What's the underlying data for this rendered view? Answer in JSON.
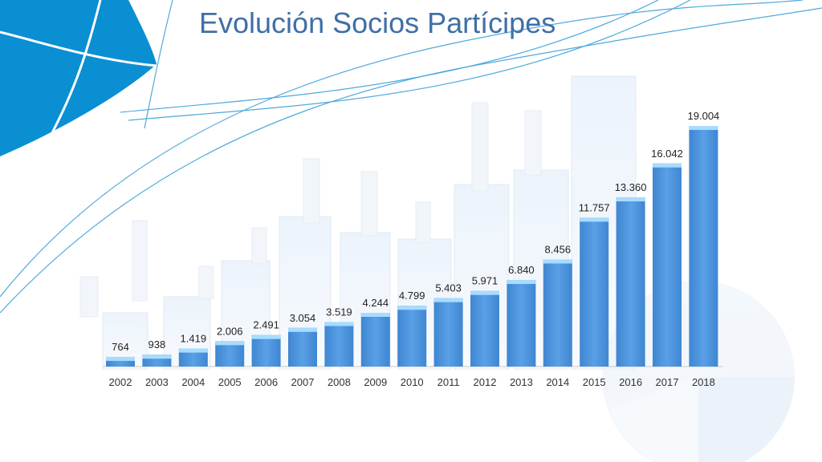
{
  "slide": {
    "title": "Evolución Socios Partícipes",
    "colors": {
      "title": "#3f6fa6",
      "bar_top": "#4a8fd6",
      "bar_bottom": "#6aa8e8",
      "bar_cap": "#a8dcff",
      "decor_blue": "#0a8fd3"
    }
  },
  "chart_data": {
    "type": "bar",
    "title": "Evolución Socios Partícipes",
    "xlabel": "",
    "ylabel": "",
    "categories": [
      "2002",
      "2003",
      "2004",
      "2005",
      "2006",
      "2007",
      "2008",
      "2009",
      "2010",
      "2011",
      "2012",
      "2013",
      "2014",
      "2015",
      "2016",
      "2017",
      "2018"
    ],
    "values": [
      764,
      938,
      1419,
      2006,
      2491,
      3054,
      3519,
      4244,
      4799,
      5403,
      5971,
      6840,
      8456,
      11757,
      13360,
      16042,
      19004
    ],
    "value_labels": [
      "764",
      "938",
      "1.419",
      "2.006",
      "2.491",
      "3.054",
      "3.519",
      "4.244",
      "4.799",
      "5.403",
      "5.971",
      "6.840",
      "8.456",
      "11.757",
      "13.360",
      "16.042",
      "19.004"
    ],
    "ylim": [
      0,
      19004
    ],
    "grid": false,
    "legend": "none"
  }
}
